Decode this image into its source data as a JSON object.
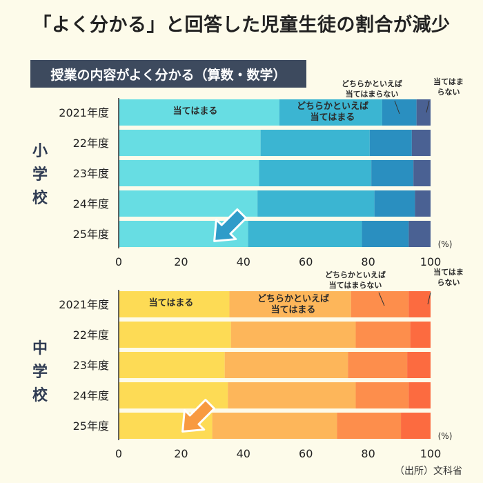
{
  "title": "「よく分かる」と回答した児童生徒の割合が減少",
  "subtitle": "授業の内容がよく分かる（算数・数学）",
  "source": "（出所）文科省",
  "chart_data": [
    {
      "type": "bar",
      "orientation": "horizontal-stacked",
      "group_label": "小学校",
      "categories": [
        "2021年度",
        "22年度",
        "23年度",
        "24年度",
        "25年度"
      ],
      "series": [
        {
          "name": "当てはまる",
          "values": [
            51.5,
            45.5,
            45,
            44.5,
            41.5
          ],
          "color": "#67dde3"
        },
        {
          "name": "どちらかといえば当てはまる",
          "values": [
            33,
            35,
            36,
            37.5,
            36.5
          ],
          "color": "#3bb5d2"
        },
        {
          "name": "どちらかといえば当てはまらない",
          "values": [
            11,
            13.5,
            13.5,
            13,
            15
          ],
          "color": "#2a8fc0"
        },
        {
          "name": "当てはまらない",
          "values": [
            4.5,
            6,
            5.5,
            5,
            7
          ],
          "color": "#4a6193"
        }
      ],
      "series_labels": [
        {
          "lines": [
            "当てはまる"
          ]
        },
        {
          "lines": [
            "どちらかといえば",
            "当てはまる"
          ]
        },
        {
          "lines": [
            "どちらかといえば",
            "当てはまらない"
          ]
        },
        {
          "lines": [
            "当てはま",
            "らない"
          ]
        }
      ],
      "xlim": [
        0,
        100
      ],
      "xticks": [
        0,
        20,
        40,
        60,
        80,
        100
      ],
      "unit": "(%)",
      "arrow_color": "#2f9cc9"
    },
    {
      "type": "bar",
      "orientation": "horizontal-stacked",
      "group_label": "中学校",
      "categories": [
        "2021年度",
        "22年度",
        "23年度",
        "24年度",
        "25年度"
      ],
      "series": [
        {
          "name": "当てはまる",
          "values": [
            35.5,
            36,
            34,
            35,
            30
          ],
          "color": "#fddb55"
        },
        {
          "name": "どちらかといえば当てはまる",
          "values": [
            39,
            40,
            39.5,
            41,
            40
          ],
          "color": "#fdb65a"
        },
        {
          "name": "どちらかといえば当てはまらない",
          "values": [
            18.5,
            17.5,
            19,
            17,
            20.5
          ],
          "color": "#fd8e4c"
        },
        {
          "name": "当てはまらない",
          "values": [
            7,
            6.5,
            7.5,
            7,
            9.5
          ],
          "color": "#fc6b40"
        }
      ],
      "series_labels": [
        {
          "lines": [
            "当てはまる"
          ]
        },
        {
          "lines": [
            "どちらかといえば",
            "当てはまる"
          ]
        },
        {
          "lines": [
            "どちらかといえば",
            "当てはまらない"
          ]
        },
        {
          "lines": [
            "当てはま",
            "らない"
          ]
        }
      ],
      "xlim": [
        0,
        100
      ],
      "xticks": [
        0,
        20,
        40,
        60,
        80,
        100
      ],
      "unit": "(%)",
      "arrow_color": "#f89a40"
    }
  ]
}
